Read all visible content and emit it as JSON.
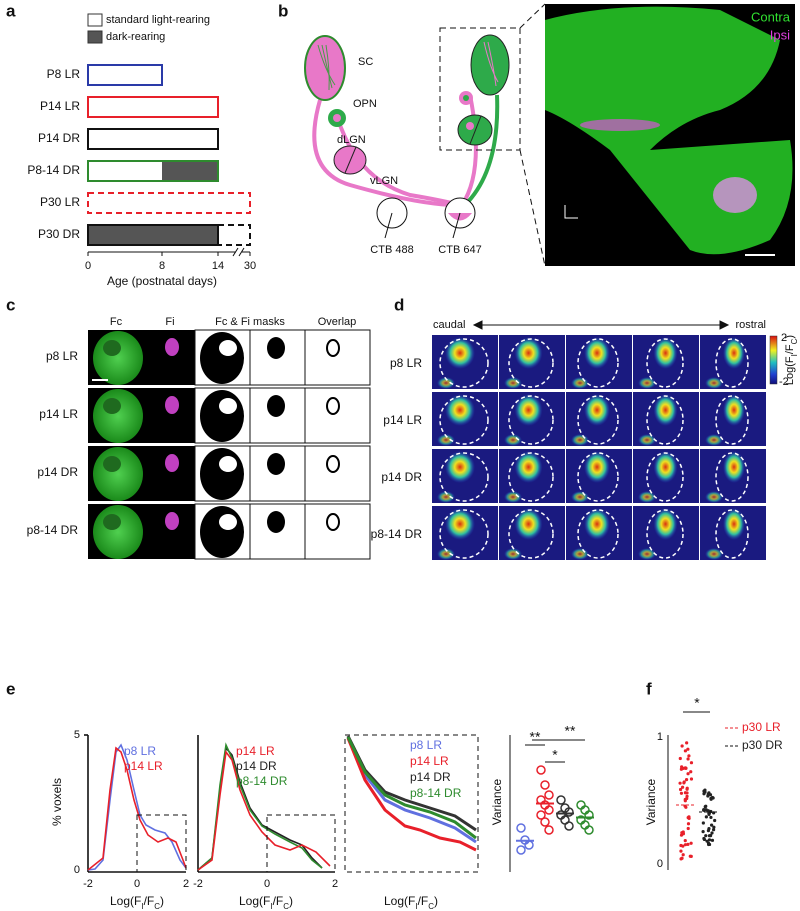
{
  "panels": {
    "a": {
      "label": "a",
      "legend": [
        "standard light-rearing",
        "dark-rearing"
      ],
      "rows": [
        "P8 LR",
        "P14 LR",
        "P14 DR",
        "P8-14 DR",
        "P30 LR",
        "P30 DR"
      ],
      "xticks": [
        "0",
        "8",
        "14",
        "30"
      ],
      "xlabel": "Age (postnatal days)"
    },
    "b": {
      "label": "b",
      "regions": [
        "SC",
        "OPN",
        "dLGN",
        "vLGN"
      ],
      "tracers": [
        "CTB 488",
        "CTB 647"
      ],
      "legend": [
        "Contra",
        "Ipsi"
      ]
    },
    "c": {
      "label": "c",
      "columns": [
        "Fc",
        "Fi",
        "Fc & Fi masks",
        "Overlap"
      ],
      "rows": [
        "p8 LR",
        "p14 LR",
        "p14 DR",
        "p8-14 DR"
      ]
    },
    "d": {
      "label": "d",
      "direction": [
        "caudal",
        "rostral"
      ],
      "rows": [
        "p8 LR",
        "p14 LR",
        "p14 DR",
        "p8-14 DR"
      ],
      "colorbar": {
        "max": "2",
        "min": "-2",
        "label": [
          "Log(F",
          "I",
          "/F",
          "C",
          ")"
        ]
      }
    },
    "e": {
      "label": "e",
      "ylabel": "% voxels",
      "yticks": [
        "0",
        "5"
      ],
      "xticks": [
        "-2",
        "0",
        "2"
      ],
      "xlabel": [
        "Log(F",
        "I",
        "/F",
        "C",
        ")"
      ],
      "legend1": [
        "p8 LR",
        "p14 LR"
      ],
      "legend2": [
        "p14 LR",
        "p14 DR",
        "p8-14 DR"
      ],
      "legend3": [
        "p8 LR",
        "p14 LR",
        "p14 DR",
        "p8-14 DR"
      ],
      "variance_label": "Variance",
      "significance": [
        "**",
        "*",
        "**"
      ]
    },
    "f": {
      "label": "f",
      "ylabel": "Variance",
      "yticks": [
        "0",
        "1"
      ],
      "legend": [
        "p30 LR",
        "p30 DR"
      ],
      "significance": "*"
    }
  }
}
